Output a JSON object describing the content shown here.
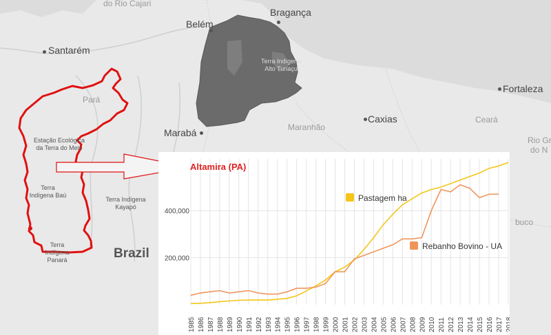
{
  "map": {
    "places": [
      {
        "id": "do-rio-cajari",
        "label": "do Rio Cajari",
        "cls": "region"
      },
      {
        "id": "belem",
        "label": "Belém",
        "cls": "city"
      },
      {
        "id": "braganca",
        "label": "Bragança",
        "cls": "city"
      },
      {
        "id": "santarem",
        "label": "Santarém",
        "cls": "city"
      },
      {
        "id": "para",
        "label": "Pará",
        "cls": "region"
      },
      {
        "id": "maraba",
        "label": "Marabá",
        "cls": "city"
      },
      {
        "id": "maranhao",
        "label": "Maranhão",
        "cls": "region"
      },
      {
        "id": "caxias",
        "label": "Caxias",
        "cls": "city"
      },
      {
        "id": "fortaleza",
        "label": "Fortaleza",
        "cls": "city"
      },
      {
        "id": "ceara",
        "label": "Ceará",
        "cls": "region"
      },
      {
        "id": "rio-grande",
        "label": "Rio Gr",
        "cls": "region"
      },
      {
        "id": "do-n",
        "label": "do N",
        "cls": "region"
      },
      {
        "id": "buco",
        "label": "buco",
        "cls": "region"
      },
      {
        "id": "estacao",
        "label": "Estação Ecológica da Terra do Meio",
        "cls": "area"
      },
      {
        "id": "bau",
        "label": "Terra Indígena Baú",
        "cls": "area"
      },
      {
        "id": "kayapo",
        "label": "Terra Indígena Kayapó",
        "cls": "area"
      },
      {
        "id": "panara",
        "label": "Terra Indígena Panará",
        "cls": "area"
      },
      {
        "id": "turiacu",
        "label": "Terra Indígena Alto Turiaçu",
        "cls": "area"
      },
      {
        "id": "brazil",
        "label": "Brazil",
        "cls": "country"
      }
    ],
    "colors": {
      "background": "#e9e9e9",
      "outline": "#e01010",
      "highlight": "#6b6b6b"
    }
  },
  "chart_data": {
    "type": "line",
    "title": "Altamira (PA)",
    "x": [
      "1985",
      "1986",
      "1987",
      "1988",
      "1989",
      "1990",
      "1991",
      "1992",
      "1993",
      "1994",
      "1995",
      "1996",
      "1997",
      "1998",
      "1999",
      "2000",
      "2001",
      "2002",
      "2003",
      "2004",
      "2005",
      "2006",
      "2007",
      "2008",
      "2009",
      "2010",
      "2011",
      "2012",
      "2013",
      "2014",
      "2015",
      "2016",
      "2017",
      "2018"
    ],
    "series": [
      {
        "name": "Pastagem ha",
        "color": "#f5c518",
        "values": [
          5000,
          6000,
          9000,
          13000,
          16000,
          19000,
          20000,
          20000,
          20000,
          23000,
          27000,
          38000,
          58000,
          80000,
          105000,
          140000,
          160000,
          190000,
          235000,
          285000,
          340000,
          385000,
          425000,
          450000,
          475000,
          490000,
          500000,
          515000,
          530000,
          545000,
          560000,
          580000,
          590000,
          605000
        ]
      },
      {
        "name": "Rebanho Bovino - UA",
        "color": "#f0955a",
        "values": [
          40000,
          50000,
          55000,
          60000,
          50000,
          55000,
          60000,
          50000,
          45000,
          45000,
          55000,
          70000,
          70000,
          75000,
          90000,
          140000,
          140000,
          195000,
          210000,
          225000,
          240000,
          255000,
          280000,
          280000,
          285000,
          400000,
          490000,
          480000,
          510000,
          495000,
          455000,
          470000,
          470000,
          null
        ]
      }
    ],
    "y_ticks": [
      "200,000",
      "400,000"
    ],
    "ylim": [
      0,
      620000
    ],
    "grid": true
  }
}
